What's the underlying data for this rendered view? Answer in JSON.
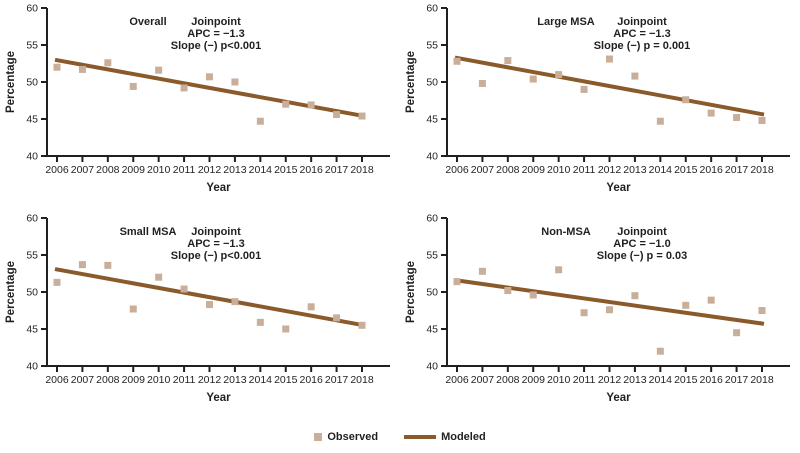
{
  "colors": {
    "observed": "#c9ae9a",
    "modeled": "#8a5a2b",
    "axis": "#231f20",
    "text": "#231f20"
  },
  "legend": {
    "observed_label": "Observed",
    "modeled_label": "Modeled"
  },
  "chart_data": [
    {
      "type": "scatter",
      "title": "Overall",
      "annotation_lines": [
        "Joinpoint",
        "APC = −1.3",
        "Slope (−) p<0.001"
      ],
      "xlabel": "Year",
      "ylabel": "Percentage",
      "ylim": [
        40,
        60
      ],
      "yticks": [
        40,
        45,
        50,
        55,
        60
      ],
      "years": [
        2006,
        2007,
        2008,
        2009,
        2010,
        2011,
        2012,
        2013,
        2014,
        2015,
        2016,
        2017,
        2018
      ],
      "series": [
        {
          "name": "Observed",
          "kind": "scatter",
          "values": [
            52.0,
            51.7,
            52.6,
            49.4,
            51.6,
            49.2,
            50.7,
            50.0,
            44.7,
            47.0,
            46.9,
            45.6,
            45.4
          ]
        },
        {
          "name": "Modeled",
          "kind": "line",
          "x": [
            2006,
            2018
          ],
          "y": [
            53.0,
            45.4
          ]
        }
      ]
    },
    {
      "type": "scatter",
      "title": "Large MSA",
      "annotation_lines": [
        "Joinpoint",
        "APC = −1.3",
        "Slope (−) p = 0.001"
      ],
      "xlabel": "Year",
      "ylabel": "Percentage",
      "ylim": [
        40,
        60
      ],
      "yticks": [
        40,
        45,
        50,
        55,
        60
      ],
      "years": [
        2006,
        2007,
        2008,
        2009,
        2010,
        2011,
        2012,
        2013,
        2014,
        2015,
        2016,
        2017,
        2018
      ],
      "series": [
        {
          "name": "Observed",
          "kind": "scatter",
          "values": [
            52.8,
            49.8,
            52.9,
            50.4,
            51.0,
            49.0,
            53.1,
            50.8,
            44.7,
            47.6,
            45.8,
            45.2,
            44.8
          ]
        },
        {
          "name": "Modeled",
          "kind": "line",
          "x": [
            2006,
            2018
          ],
          "y": [
            53.3,
            45.6
          ]
        }
      ]
    },
    {
      "type": "scatter",
      "title": "Small MSA",
      "annotation_lines": [
        "Joinpoint",
        "APC = −1.3",
        "Slope (−) p<0.001"
      ],
      "xlabel": "Year",
      "ylabel": "Percentage",
      "ylim": [
        40,
        60
      ],
      "yticks": [
        40,
        45,
        50,
        55,
        60
      ],
      "years": [
        2006,
        2007,
        2008,
        2009,
        2010,
        2011,
        2012,
        2013,
        2014,
        2015,
        2016,
        2017,
        2018
      ],
      "series": [
        {
          "name": "Observed",
          "kind": "scatter",
          "values": [
            51.3,
            53.7,
            53.6,
            47.7,
            52.0,
            50.4,
            48.3,
            48.7,
            45.9,
            45.0,
            48.0,
            46.5,
            45.5
          ]
        },
        {
          "name": "Modeled",
          "kind": "line",
          "x": [
            2006,
            2018
          ],
          "y": [
            53.1,
            45.5
          ]
        }
      ]
    },
    {
      "type": "scatter",
      "title": "Non-MSA",
      "annotation_lines": [
        "Joinpoint",
        "APC = −1.0",
        "Slope (−) p = 0.03"
      ],
      "xlabel": "Year",
      "ylabel": "Percentage",
      "ylim": [
        40,
        60
      ],
      "yticks": [
        40,
        45,
        50,
        55,
        60
      ],
      "years": [
        2006,
        2007,
        2008,
        2009,
        2010,
        2011,
        2012,
        2013,
        2014,
        2015,
        2016,
        2017,
        2018
      ],
      "series": [
        {
          "name": "Observed",
          "kind": "scatter",
          "values": [
            51.4,
            52.8,
            50.2,
            49.6,
            53.0,
            47.2,
            47.6,
            49.5,
            42.0,
            48.2,
            48.9,
            44.5,
            47.5
          ]
        },
        {
          "name": "Modeled",
          "kind": "line",
          "x": [
            2006,
            2018
          ],
          "y": [
            51.6,
            45.7
          ]
        }
      ]
    }
  ]
}
